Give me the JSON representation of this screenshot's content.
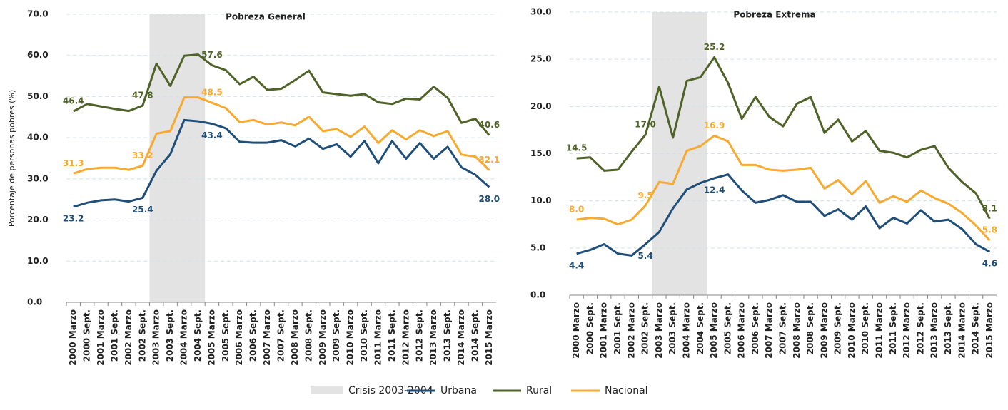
{
  "chart_data": [
    {
      "type": "line",
      "title": "Pobreza General",
      "y_label": "Porcentaje de personas pobres (%)",
      "categories": [
        "2000 Marzo",
        "2000 Sept.",
        "2001 Marzo",
        "2001 Sept.",
        "2002 Marzo",
        "2002 Sept.",
        "2003 Marzo",
        "2003 Sept.",
        "2004 Marzo",
        "2004 Sept.",
        "2005 Marzo",
        "2005 Sept.",
        "2006 Marzo",
        "2006 Sept.",
        "2007 Marzo",
        "2007 Sept.",
        "2008 Marzo",
        "2008 Sept.",
        "2009 Marzo",
        "2009 Sept.",
        "2010 Marzo",
        "2010 Sept.",
        "2011 Marzo",
        "2011 Sept.",
        "2012 Marzo",
        "2012 Sept.",
        "2013 Marzo",
        "2013 Sept.",
        "2014 Marzo",
        "2014 Sept.",
        "2015 Marzo"
      ],
      "shade": {
        "name": "Crisis 2003-2004",
        "from": "2003 Marzo",
        "to": "2004 Sept.",
        "color": "#e3e3e3"
      },
      "series": [
        {
          "name": "Urbana",
          "color": "#1f4e79",
          "values": [
            23.2,
            24.2,
            24.8,
            25.0,
            24.5,
            25.4,
            32.0,
            36.0,
            44.3,
            44.0,
            43.4,
            42.3,
            39.0,
            38.8,
            38.8,
            39.4,
            37.9,
            39.8,
            37.3,
            38.4,
            35.4,
            39.2,
            33.8,
            39.2,
            34.9,
            38.7,
            34.9,
            37.8,
            32.8,
            31.0,
            28.0
          ],
          "value_labels": [
            "23.2",
            null,
            null,
            null,
            null,
            "25.4",
            null,
            null,
            null,
            null,
            "43.4",
            null,
            null,
            null,
            null,
            null,
            null,
            null,
            null,
            null,
            null,
            null,
            null,
            null,
            null,
            null,
            null,
            null,
            null,
            null,
            "28.0"
          ]
        },
        {
          "name": "Rural",
          "color": "#4f6228",
          "values": [
            46.4,
            48.2,
            47.6,
            47.0,
            46.5,
            47.8,
            58.0,
            52.6,
            59.9,
            60.2,
            57.6,
            56.4,
            53.0,
            54.8,
            51.6,
            51.9,
            54.0,
            56.3,
            51.0,
            50.6,
            50.2,
            50.6,
            48.6,
            48.2,
            49.5,
            49.3,
            52.4,
            49.7,
            43.6,
            44.6,
            40.6
          ],
          "value_labels": [
            "46.4",
            null,
            null,
            null,
            null,
            "47.8",
            null,
            null,
            null,
            null,
            "57.6",
            null,
            null,
            null,
            null,
            null,
            null,
            null,
            null,
            null,
            null,
            null,
            null,
            null,
            null,
            null,
            null,
            null,
            null,
            null,
            "40.6"
          ]
        },
        {
          "name": "Nacional",
          "color": "#f7aa2f",
          "values": [
            31.3,
            32.4,
            32.7,
            32.7,
            32.2,
            33.2,
            41.0,
            41.6,
            49.8,
            49.8,
            48.5,
            47.2,
            43.8,
            44.3,
            43.2,
            43.7,
            43.0,
            45.1,
            41.6,
            42.1,
            40.2,
            42.7,
            38.7,
            41.8,
            39.6,
            41.8,
            40.4,
            41.6,
            35.9,
            35.4,
            32.1
          ],
          "value_labels": [
            "31.3",
            null,
            null,
            null,
            null,
            "33.2",
            null,
            null,
            null,
            null,
            "48.5",
            null,
            null,
            null,
            null,
            null,
            null,
            null,
            null,
            null,
            null,
            null,
            null,
            null,
            null,
            null,
            null,
            null,
            null,
            null,
            "32.1"
          ]
        }
      ],
      "ylim": [
        0,
        70
      ],
      "yticks": [
        {
          "value": 0,
          "label": "0.0"
        },
        {
          "value": 10,
          "label": "10.0"
        },
        {
          "value": 20,
          "label": "20.0"
        },
        {
          "value": 30,
          "label": "30.0"
        },
        {
          "value": 40,
          "label": "40.0"
        },
        {
          "value": 50,
          "label": "50.0"
        },
        {
          "value": 60,
          "label": "60.0"
        },
        {
          "value": 70,
          "label": "70.0"
        }
      ],
      "grid": true
    },
    {
      "type": "line",
      "title": "Pobreza Extrema",
      "categories": [
        "2000 Marzo",
        "2000 Sept.",
        "2001 Marzo",
        "2001 Sept.",
        "2002 Marzo",
        "2002 Sept.",
        "2003 Marzo",
        "2003 Sept.",
        "2004 Marzo",
        "2004 Sept.",
        "2005 Marzo",
        "2005 Sept.",
        "2006 Marzo",
        "2006 Sept.",
        "2007 Marzo",
        "2007 Sept.",
        "2008 Marzo",
        "2008 Sept.",
        "2009 Marzo",
        "2009 Sept.",
        "2010 Marzo",
        "2010 Sept.",
        "2011 Marzo",
        "2011 Sept.",
        "2012 Marzo",
        "2012 Sept.",
        "2013 Marzo",
        "2013 Sept.",
        "2014 Marzo",
        "2014 Sept.",
        "2015 Marzo"
      ],
      "shade": {
        "from": "2003 Marzo",
        "to": "2004 Sept.",
        "color": "#e3e3e3"
      },
      "series": [
        {
          "name": "Urbana",
          "color": "#1f4e79",
          "values": [
            4.4,
            4.8,
            5.4,
            4.4,
            4.2,
            5.4,
            6.7,
            9.2,
            11.2,
            11.9,
            12.4,
            12.8,
            11.1,
            9.8,
            10.1,
            10.6,
            9.9,
            9.9,
            8.4,
            9.1,
            8.0,
            9.4,
            7.1,
            8.2,
            7.6,
            9.0,
            7.8,
            8.0,
            7.0,
            5.4,
            4.6
          ],
          "value_labels": [
            "4.4",
            null,
            null,
            null,
            null,
            "5.4",
            null,
            null,
            null,
            null,
            "12.4",
            null,
            null,
            null,
            null,
            null,
            null,
            null,
            null,
            null,
            null,
            null,
            null,
            null,
            null,
            null,
            null,
            null,
            null,
            null,
            "4.6"
          ]
        },
        {
          "name": "Rural",
          "color": "#4f6228",
          "values": [
            14.5,
            14.6,
            13.2,
            13.3,
            15.2,
            17.0,
            22.1,
            16.7,
            22.7,
            23.1,
            25.2,
            22.5,
            18.7,
            21.0,
            18.9,
            17.9,
            20.3,
            21.0,
            17.2,
            18.6,
            16.3,
            17.4,
            15.3,
            15.1,
            14.6,
            15.4,
            15.8,
            13.5,
            12.0,
            10.8,
            8.1
          ],
          "value_labels": [
            "14.5",
            null,
            null,
            null,
            null,
            "17.0",
            null,
            null,
            null,
            null,
            "25.2",
            null,
            null,
            null,
            null,
            null,
            null,
            null,
            null,
            null,
            null,
            null,
            null,
            null,
            null,
            null,
            null,
            null,
            null,
            null,
            "8.1"
          ]
        },
        {
          "name": "Nacional",
          "color": "#f7aa2f",
          "values": [
            8.0,
            8.2,
            8.1,
            7.5,
            8.0,
            9.5,
            12.0,
            11.8,
            15.3,
            15.8,
            16.9,
            16.3,
            13.8,
            13.8,
            13.3,
            13.2,
            13.3,
            13.5,
            11.3,
            12.2,
            10.7,
            12.1,
            9.8,
            10.5,
            9.9,
            11.1,
            10.3,
            9.7,
            8.7,
            7.4,
            5.8
          ],
          "value_labels": [
            "8.0",
            null,
            null,
            null,
            null,
            "9.5",
            null,
            null,
            null,
            null,
            "16.9",
            null,
            null,
            null,
            null,
            null,
            null,
            null,
            null,
            null,
            null,
            null,
            null,
            null,
            null,
            null,
            null,
            null,
            null,
            null,
            "5.8"
          ]
        }
      ],
      "ylim": [
        0,
        30
      ],
      "yticks": [
        {
          "value": 0,
          "label": "0.0"
        },
        {
          "value": 5,
          "label": "5.0"
        },
        {
          "value": 10,
          "label": "10.0"
        },
        {
          "value": 15,
          "label": "15.0"
        },
        {
          "value": 20,
          "label": "20.0"
        },
        {
          "value": 25,
          "label": "25.0"
        },
        {
          "value": 30,
          "label": "30.0"
        }
      ],
      "grid": true
    }
  ]
}
